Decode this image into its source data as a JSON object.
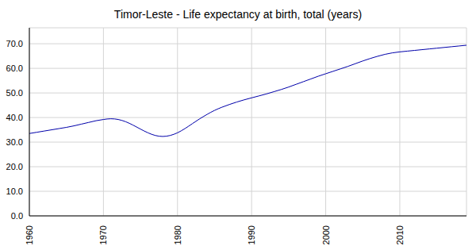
{
  "chart_data": {
    "type": "line",
    "title": "Timor-Leste - Life expectancy at birth, total (years)",
    "x": [
      1960,
      1961,
      1962,
      1963,
      1964,
      1965,
      1966,
      1967,
      1968,
      1969,
      1970,
      1971,
      1972,
      1973,
      1974,
      1975,
      1976,
      1977,
      1978,
      1979,
      1980,
      1981,
      1982,
      1983,
      1984,
      1985,
      1986,
      1987,
      1988,
      1989,
      1990,
      1991,
      1992,
      1993,
      1994,
      1995,
      1996,
      1997,
      1998,
      1999,
      2000,
      2001,
      2002,
      2003,
      2004,
      2005,
      2006,
      2007,
      2008,
      2009,
      2010,
      2011,
      2012,
      2013,
      2014,
      2015,
      2016,
      2017,
      2018,
      2019
    ],
    "values": [
      33.5,
      34.0,
      34.5,
      35.0,
      35.5,
      36.0,
      36.6,
      37.3,
      38.0,
      38.7,
      39.2,
      39.5,
      39.2,
      38.3,
      36.9,
      35.3,
      33.8,
      32.7,
      32.3,
      32.7,
      33.8,
      35.5,
      37.5,
      39.5,
      41.3,
      42.9,
      44.2,
      45.3,
      46.3,
      47.2,
      48.0,
      48.8,
      49.6,
      50.5,
      51.4,
      52.4,
      53.5,
      54.6,
      55.7,
      56.8,
      57.8,
      58.8,
      59.8,
      60.8,
      61.9,
      63.0,
      64.0,
      64.9,
      65.7,
      66.3,
      66.7,
      67.0,
      67.3,
      67.6,
      67.9,
      68.2,
      68.5,
      68.8,
      69.1,
      69.4
    ],
    "color": "#0000aa",
    "xlim": [
      1960,
      2019
    ],
    "xticks": [
      1960,
      1970,
      1980,
      1990,
      2000,
      2010
    ],
    "ylim": [
      0,
      76.5
    ],
    "yticks": [
      {
        "value": 0,
        "label": "0.0"
      },
      {
        "value": 10,
        "label": "10.0"
      },
      {
        "value": 20,
        "label": "20.0"
      },
      {
        "value": 30,
        "label": "30.0"
      },
      {
        "value": 40,
        "label": "40.0"
      },
      {
        "value": 50,
        "label": "50.0"
      },
      {
        "value": 60,
        "label": "60.0"
      },
      {
        "value": 70,
        "label": "70.0"
      }
    ],
    "grid": true
  }
}
